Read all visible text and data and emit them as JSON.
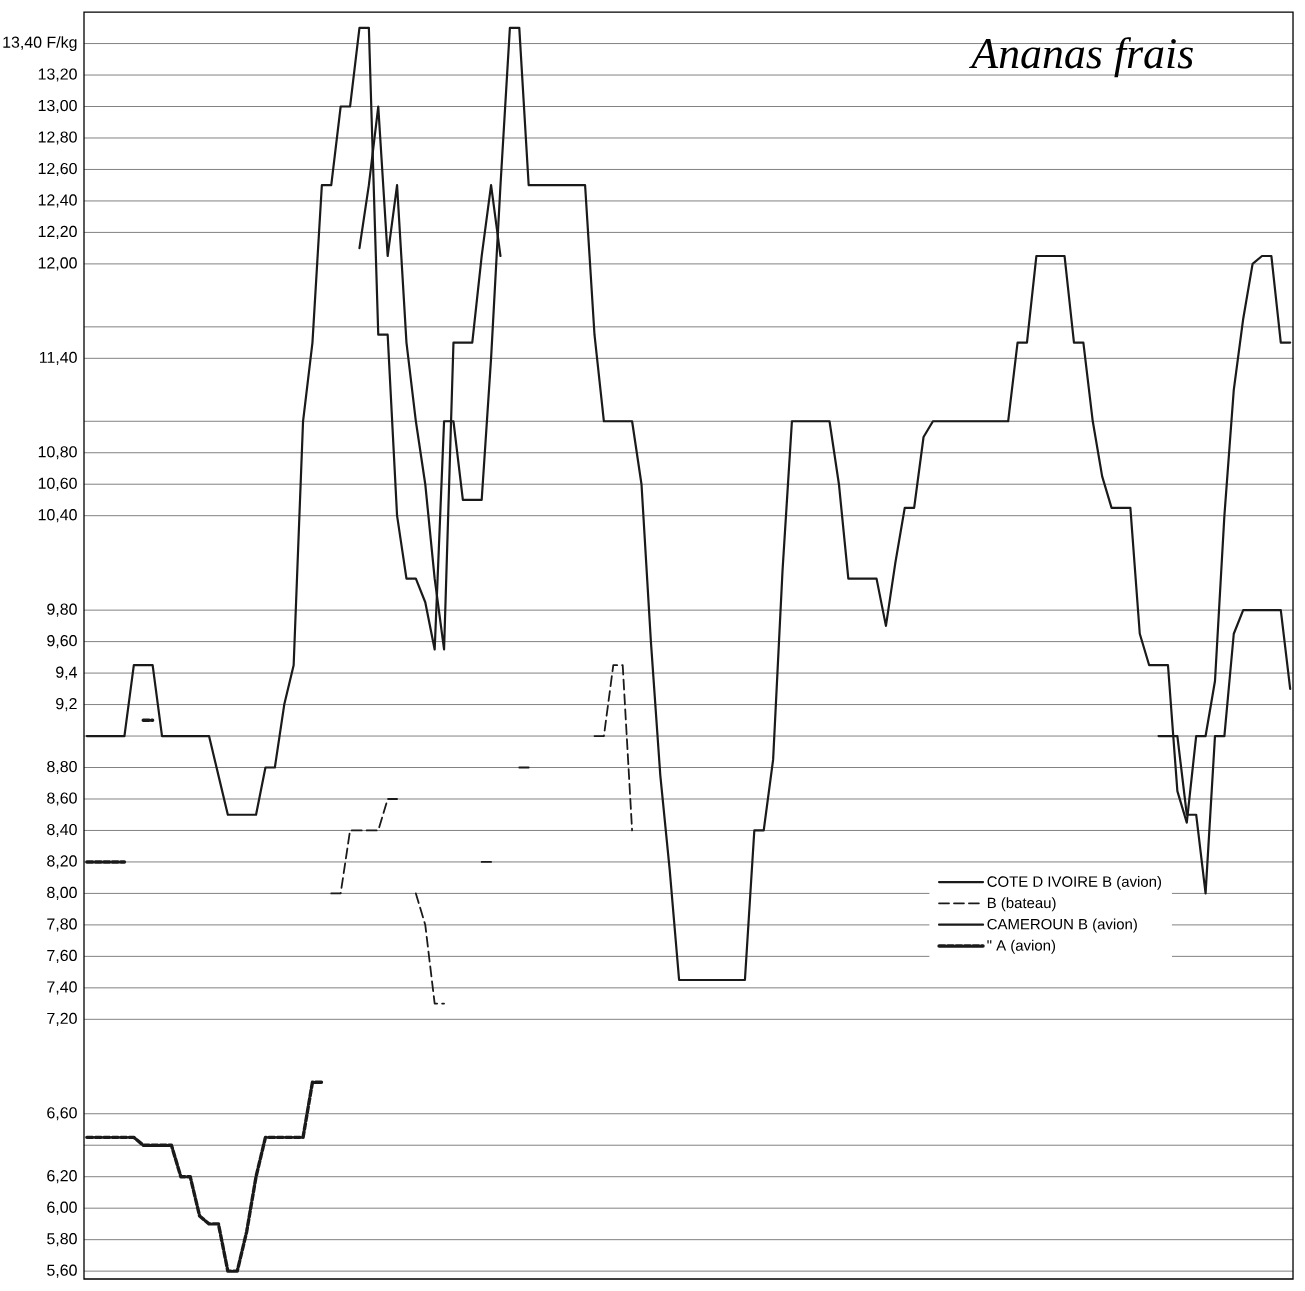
{
  "chart_data": {
    "type": "line",
    "title": "Ananas frais",
    "ylim": [
      5.55,
      13.6
    ],
    "grid": "y",
    "legend": "bottom right",
    "categories": [
      null,
      null,
      null,
      null,
      null,
      null,
      null,
      null,
      null,
      null,
      null,
      null,
      null,
      null,
      null,
      null,
      null,
      null,
      null,
      null,
      null,
      null,
      null,
      null,
      null,
      null,
      null,
      null,
      null,
      null,
      null,
      null,
      null,
      null,
      null,
      null,
      null,
      null,
      null,
      null,
      null,
      null,
      null,
      null,
      null,
      null,
      null,
      null,
      null,
      null,
      null,
      null,
      null,
      null,
      null,
      null,
      null,
      null,
      null,
      null,
      null,
      null,
      null,
      null,
      null,
      null,
      null,
      null,
      null,
      null,
      null,
      null,
      null,
      null,
      null,
      null,
      null,
      null,
      null,
      null,
      null,
      null,
      null,
      null,
      null,
      null,
      null,
      null,
      null,
      null,
      null,
      null,
      null,
      null,
      null,
      null,
      null,
      null,
      null,
      null,
      null,
      null,
      null,
      null,
      null,
      null,
      null,
      null,
      null,
      null,
      null,
      null,
      null,
      null,
      null,
      null,
      null,
      null,
      null,
      null,
      null,
      null,
      null,
      null,
      null,
      null,
      null,
      null,
      null
    ],
    "yticks": [
      {
        "value": 5.6,
        "label": "5,60"
      },
      {
        "value": 5.8,
        "label": "5,80"
      },
      {
        "value": 6.0,
        "label": "6,00"
      },
      {
        "value": 6.2,
        "label": "6,20"
      },
      {
        "value": 6.4,
        "label": null
      },
      {
        "value": 6.6,
        "label": "6,60"
      },
      {
        "value": 7.2,
        "label": "7,20"
      },
      {
        "value": 7.4,
        "label": "7,40"
      },
      {
        "value": 7.6,
        "label": "7,60"
      },
      {
        "value": 7.8,
        "label": "7,80"
      },
      {
        "value": 8.0,
        "label": "8,00"
      },
      {
        "value": 8.2,
        "label": "8,20"
      },
      {
        "value": 8.4,
        "label": "8,40"
      },
      {
        "value": 8.6,
        "label": "8,60"
      },
      {
        "value": 8.8,
        "label": "8,80"
      },
      {
        "value": 9.0,
        "label": null
      },
      {
        "value": 9.2,
        "label": "9,2"
      },
      {
        "value": 9.4,
        "label": "9,4"
      },
      {
        "value": 9.6,
        "label": "9,60"
      },
      {
        "value": 9.8,
        "label": "9,80"
      },
      {
        "value": 10.4,
        "label": "10,40"
      },
      {
        "value": 10.6,
        "label": "10,60"
      },
      {
        "value": 10.8,
        "label": "10,80"
      },
      {
        "value": 11.0,
        "label": null
      },
      {
        "value": 11.4,
        "label": "11,40"
      },
      {
        "value": 11.6,
        "label": null
      },
      {
        "value": 12.0,
        "label": "12,00"
      },
      {
        "value": 12.2,
        "label": "12,20"
      },
      {
        "value": 12.4,
        "label": "12,40"
      },
      {
        "value": 12.6,
        "label": "12,60"
      },
      {
        "value": 12.8,
        "label": "12,80"
      },
      {
        "value": 13.0,
        "label": "13,00"
      },
      {
        "value": 13.2,
        "label": "13,20"
      },
      {
        "value": 13.4,
        "label": "13,40 F/kg"
      }
    ],
    "series": [
      {
        "name": "COTE D IVOIRE B (avion)",
        "color": "#1a1a1a",
        "line_style": "solid",
        "values": [
          9.0,
          9.0,
          9.0,
          9.0,
          9.0,
          9.45,
          9.45,
          9.45,
          9.0,
          9.0,
          9.0,
          9.0,
          9.0,
          9.0,
          8.75,
          8.5,
          8.5,
          8.5,
          8.5,
          8.8,
          8.8,
          9.2,
          9.45,
          11.0,
          11.5,
          12.5,
          12.5,
          13.0,
          13.0,
          13.5,
          13.5,
          11.55,
          11.55,
          10.4,
          10.0,
          10.0,
          9.85,
          9.55,
          11.0,
          11.0,
          10.5,
          10.5,
          10.5,
          11.4,
          12.5,
          13.5,
          13.5,
          12.5,
          12.5,
          12.5,
          12.5,
          12.5,
          12.5,
          12.5,
          11.55,
          11.0,
          11.0,
          11.0,
          11.0,
          10.6,
          9.6,
          8.75,
          8.15,
          7.45,
          7.45,
          7.45,
          7.45,
          7.45,
          7.45,
          7.45,
          7.45,
          8.4,
          8.4,
          8.85,
          10.05,
          11.0,
          11.0,
          11.0,
          11.0,
          11.0,
          10.6,
          10.0,
          10.0,
          10.0,
          10.0,
          9.7,
          10.1,
          10.45,
          10.45,
          10.9,
          11.0,
          11.0,
          11.0,
          11.0,
          11.0,
          11.0,
          11.0,
          11.0,
          11.0,
          11.5,
          11.5,
          12.05,
          12.05,
          12.05,
          12.05,
          11.5,
          11.5,
          11.0,
          10.65,
          10.45,
          10.45,
          10.45,
          9.65,
          9.45,
          9.45,
          9.45,
          8.65,
          8.45,
          9.0,
          9.0,
          9.35,
          10.4,
          11.2,
          11.65,
          12.0,
          12.05,
          12.05,
          11.5,
          11.5
        ]
      },
      {
        "name": "B (bateau)",
        "color": "#1a1a1a",
        "line_style": "dashed",
        "values": [
          null,
          null,
          null,
          null,
          null,
          null,
          null,
          null,
          null,
          null,
          null,
          null,
          null,
          null,
          null,
          null,
          null,
          null,
          null,
          null,
          null,
          null,
          null,
          null,
          null,
          null,
          8.0,
          8.0,
          8.4,
          8.4,
          8.4,
          8.4,
          8.6,
          8.6,
          null,
          8.0,
          7.8,
          7.3,
          7.3,
          null,
          null,
          null,
          8.2,
          8.2,
          null,
          null,
          8.8,
          8.8,
          null,
          null,
          null,
          null,
          null,
          null,
          9.0,
          9.0,
          9.45,
          9.45,
          8.4,
          null,
          null,
          null,
          null,
          null,
          null,
          null,
          null,
          null,
          null,
          null,
          null,
          null,
          null,
          null,
          null,
          null,
          null,
          null,
          null,
          null,
          null,
          null,
          null,
          null,
          null,
          null,
          null,
          null,
          null,
          null,
          null,
          null,
          null,
          null,
          null,
          null,
          null,
          null,
          null,
          null,
          null,
          null,
          null,
          null,
          null,
          null,
          null,
          null,
          null,
          null,
          null,
          null,
          null,
          null,
          null,
          null,
          null,
          null,
          null,
          null,
          null,
          null,
          null,
          null,
          null,
          null,
          null,
          null,
          null
        ]
      },
      {
        "name": "CAMEROUN B (avion)",
        "color": "#1a1a1a",
        "line_style": "solid",
        "values": [
          null,
          null,
          null,
          null,
          null,
          null,
          null,
          null,
          null,
          null,
          null,
          null,
          null,
          null,
          null,
          null,
          null,
          null,
          null,
          null,
          null,
          null,
          null,
          null,
          null,
          null,
          null,
          null,
          null,
          12.1,
          12.5,
          13.0,
          12.05,
          12.5,
          11.5,
          11.0,
          10.6,
          10.0,
          9.55,
          11.5,
          11.5,
          11.5,
          12.05,
          12.5,
          12.05,
          null,
          null,
          null,
          null,
          null,
          null,
          null,
          null,
          null,
          null,
          null,
          null,
          null,
          null,
          null,
          null,
          null,
          null,
          null,
          null,
          null,
          null,
          null,
          null,
          null,
          null,
          null,
          null,
          null,
          null,
          null,
          null,
          null,
          null,
          null,
          null,
          null,
          null,
          null,
          null,
          null,
          null,
          null,
          null,
          null,
          null,
          null,
          null,
          null,
          null,
          null,
          null,
          null,
          null,
          null,
          null,
          null,
          null,
          null,
          null,
          null,
          null,
          null,
          null,
          null,
          null,
          null,
          null,
          null,
          9.0,
          9.0,
          9.0,
          8.5,
          8.5,
          8.0,
          9.0,
          9.0,
          9.65,
          9.8,
          9.8,
          9.8,
          9.8,
          9.8,
          9.3
        ]
      },
      {
        "name": "\" A (avion)",
        "color": "#1a1a1a",
        "line_style": "dotted",
        "values": [
          6.45,
          6.45,
          6.45,
          6.45,
          6.45,
          6.45,
          6.4,
          6.4,
          6.4,
          6.4,
          6.2,
          6.2,
          5.95,
          5.9,
          5.9,
          5.6,
          5.6,
          5.85,
          6.2,
          6.45,
          6.45,
          6.45,
          6.45,
          6.45,
          6.8,
          6.8,
          null,
          null,
          null,
          null,
          null,
          null,
          null,
          null,
          null,
          null,
          null,
          null,
          null,
          null,
          null,
          null,
          null,
          null,
          null,
          null,
          null,
          null,
          null,
          null,
          null,
          null,
          null,
          null,
          null,
          null,
          null,
          null,
          null,
          null,
          null,
          null,
          null,
          null,
          null,
          null,
          null,
          null,
          null,
          null,
          null,
          null,
          null,
          null,
          null,
          null,
          null,
          null,
          null,
          null,
          null,
          null,
          null,
          null,
          null,
          null,
          null,
          null,
          null,
          null,
          null,
          null,
          null,
          null,
          null,
          null,
          null,
          null,
          null,
          null,
          null,
          null,
          null,
          null,
          null,
          null,
          null,
          null,
          null,
          null,
          null,
          null,
          null,
          null,
          null,
          null,
          null,
          null,
          null,
          null,
          null,
          null,
          null,
          null,
          null,
          null,
          null,
          null,
          null
        ]
      },
      {
        "color": "#1a1a1a",
        "line_style": "dotted",
        "values": [
          8.2,
          8.2,
          8.2,
          8.2,
          8.2,
          null,
          9.1,
          9.1,
          null,
          null,
          null,
          null,
          null,
          null,
          null,
          null,
          null,
          null,
          null,
          null,
          null,
          null,
          null,
          null,
          null,
          null,
          null,
          null,
          null,
          null,
          null,
          null,
          null,
          null,
          null,
          null,
          null,
          null,
          null,
          null,
          null,
          null,
          null,
          null,
          null,
          null,
          null,
          null,
          null,
          null,
          null,
          null,
          null,
          null,
          null,
          null,
          null,
          null,
          null,
          null,
          null,
          null,
          null,
          null,
          null,
          null,
          null,
          null,
          null,
          null,
          null,
          null,
          null,
          null,
          null,
          null,
          null,
          null,
          null,
          null,
          null,
          null,
          null,
          null,
          null,
          null,
          null,
          null,
          null,
          null,
          null,
          null,
          null,
          null,
          null,
          null,
          null,
          null,
          null,
          null,
          null,
          null,
          null,
          null,
          null,
          null,
          null,
          null,
          null,
          null,
          null,
          null,
          null,
          null,
          null,
          null,
          null,
          null,
          null,
          null,
          null,
          null,
          null,
          null,
          null,
          null,
          null,
          null,
          null
        ]
      }
    ]
  }
}
